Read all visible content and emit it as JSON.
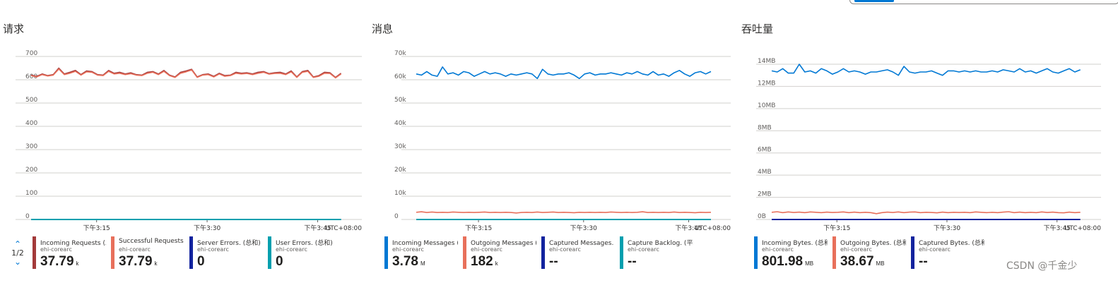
{
  "pager": {
    "label": "1/2",
    "up_icon": "chevron-up-icon",
    "down_icon": "chevron-down-icon"
  },
  "watermark": "CSDN @千金少",
  "colors": {
    "blue": "#0078d4",
    "salmon": "#e8705b",
    "navy": "#12239e",
    "teal": "#009fae",
    "darkred": "#6b0b2f",
    "grid": "#c8c6c4"
  },
  "chart_data": [
    {
      "type": "line",
      "title": "请求",
      "x_ticks": [
        "下午3:15",
        "下午3:30",
        "下午3:45"
      ],
      "x_ticks_minutes": [
        15,
        30,
        45
      ],
      "x_range_minutes": [
        4,
        51
      ],
      "timezone": "UTC+08:00",
      "y_ticks": [
        "0",
        "100",
        "200",
        "300",
        "400",
        "500",
        "600",
        "700"
      ],
      "y_tick_values": [
        0,
        100,
        200,
        300,
        400,
        500,
        600,
        700
      ],
      "ylim": [
        0,
        700
      ],
      "grid": true,
      "series": [
        {
          "name": "Incoming Requests (总和)",
          "resource": "ehi-corearc",
          "summary": "37.79",
          "unit": "k",
          "color": "#a33a3a",
          "values": [
            620,
            615,
            625,
            618,
            622,
            650,
            625,
            632,
            640,
            622,
            638,
            635,
            622,
            620,
            640,
            628,
            632,
            625,
            630,
            622,
            620,
            632,
            635,
            625,
            640,
            620,
            612,
            632,
            638,
            645,
            612,
            622,
            625,
            615,
            628,
            618,
            620,
            632,
            628,
            630,
            625,
            632,
            635,
            626,
            630,
            632,
            625,
            638,
            612,
            635,
            640,
            612,
            618,
            632,
            630,
            610,
            628
          ]
        },
        {
          "name": "Successful Requests ...",
          "resource": "ehi-corearc",
          "summary": "37.79",
          "unit": "k",
          "color": "#e8705b",
          "values": [
            618,
            612,
            622,
            616,
            620,
            646,
            622,
            628,
            636,
            620,
            634,
            632,
            620,
            618,
            636,
            625,
            628,
            622,
            626,
            620,
            618,
            628,
            632,
            622,
            636,
            618,
            610,
            628,
            634,
            642,
            610,
            620,
            622,
            612,
            625,
            615,
            618,
            628,
            625,
            627,
            622,
            628,
            632,
            624,
            627,
            628,
            622,
            634,
            610,
            632,
            636,
            610,
            615,
            628,
            627,
            608,
            625
          ]
        },
        {
          "name": "Server Errors. (总和)",
          "resource": "ehi-corearc",
          "summary": "0",
          "unit": "",
          "color": "#12239e",
          "flat": 0
        },
        {
          "name": "User Errors. (总和)",
          "resource": "ehi-corearc",
          "summary": "0",
          "unit": "",
          "color": "#009fae",
          "flat": 0
        }
      ]
    },
    {
      "type": "line",
      "title": "消息",
      "x_ticks": [
        "下午3:15",
        "下午3:30",
        "下午3:45"
      ],
      "x_ticks_minutes": [
        15,
        30,
        45
      ],
      "x_range_minutes": [
        4,
        51
      ],
      "timezone": "UTC+08:00",
      "y_ticks": [
        "0",
        "10k",
        "20k",
        "30k",
        "40k",
        "50k",
        "60k",
        "70k"
      ],
      "y_tick_values": [
        0,
        10000,
        20000,
        30000,
        40000,
        50000,
        60000,
        70000
      ],
      "ylim": [
        0,
        70000
      ],
      "grid": true,
      "series": [
        {
          "name": "Incoming Messages (总和)",
          "resource": "ehi-corearc",
          "summary": "3.78",
          "unit": "M",
          "color": "#0078d4",
          "values": [
            62500,
            62000,
            63500,
            62000,
            61500,
            65500,
            62500,
            63000,
            62000,
            63500,
            63000,
            61500,
            62500,
            63500,
            62500,
            63000,
            62500,
            61500,
            62500,
            62000,
            62500,
            63000,
            62500,
            60500,
            64500,
            62500,
            62000,
            62500,
            62500,
            63000,
            62000,
            60500,
            62500,
            63000,
            62000,
            62500,
            62500,
            63000,
            62500,
            62000,
            63000,
            62500,
            63500,
            62500,
            62000,
            63500,
            62000,
            62500,
            61500,
            63000,
            64000,
            62500,
            61500,
            63000,
            63500,
            62500,
            63500
          ]
        },
        {
          "name": "Outgoing Messages (总和)",
          "resource": "ehi-corearc",
          "summary": "182",
          "unit": "k",
          "color": "#e8705b",
          "values": [
            3100,
            3300,
            3000,
            3200,
            3000,
            3100,
            3000,
            3200,
            3100,
            3000,
            3100,
            3000,
            3100,
            3200,
            3000,
            3100,
            3000,
            3100,
            3000,
            2800,
            3000,
            3100,
            3000,
            3200,
            3000,
            3100,
            3200,
            3000,
            3100,
            3000,
            2900,
            3100,
            3000,
            3100,
            3000,
            3100,
            3000,
            3200,
            3100,
            3000,
            3100,
            3000,
            3100,
            3300,
            3000,
            3100,
            3000,
            3100,
            3000,
            3200,
            3000,
            3100,
            3000,
            2900,
            3100,
            3000,
            3100
          ]
        },
        {
          "name": "Captured Messages. (总和)",
          "resource": "ehi-corearc",
          "summary": "--",
          "unit": "",
          "color": "#12239e"
        },
        {
          "name": "Capture Backlog. (平均值)",
          "resource": "ehi-corearc",
          "summary": "--",
          "unit": "",
          "color": "#009fae",
          "flat": 0
        }
      ]
    },
    {
      "type": "line",
      "title": "吞吐量",
      "x_ticks": [
        "下午3:15",
        "下午3:30",
        "下午3:45"
      ],
      "x_ticks_minutes": [
        15,
        30,
        45
      ],
      "x_range_minutes": [
        4,
        51
      ],
      "timezone": "UTC+08:00",
      "y_ticks": [
        "0B",
        "2MB",
        "4MB",
        "6MB",
        "8MB",
        "10MB",
        "12MB",
        "14MB"
      ],
      "y_tick_values": [
        0,
        2,
        4,
        6,
        8,
        10,
        12,
        14
      ],
      "ylim": [
        0,
        14
      ],
      "grid": true,
      "series": [
        {
          "name": "Incoming Bytes. (总和)",
          "resource": "ehi-corearc",
          "summary": "801.98",
          "unit": "MB",
          "color": "#0078d4",
          "values": [
            13.4,
            13.3,
            13.6,
            13.2,
            13.2,
            14.0,
            13.3,
            13.4,
            13.2,
            13.6,
            13.4,
            13.1,
            13.3,
            13.6,
            13.3,
            13.4,
            13.3,
            13.1,
            13.3,
            13.3,
            13.4,
            13.5,
            13.3,
            13.0,
            13.8,
            13.3,
            13.2,
            13.3,
            13.3,
            13.4,
            13.2,
            13.0,
            13.4,
            13.4,
            13.3,
            13.4,
            13.3,
            13.4,
            13.3,
            13.3,
            13.4,
            13.3,
            13.5,
            13.4,
            13.3,
            13.6,
            13.3,
            13.4,
            13.2,
            13.4,
            13.6,
            13.3,
            13.2,
            13.4,
            13.6,
            13.3,
            13.5
          ]
        },
        {
          "name": "Outgoing Bytes. (总和)",
          "resource": "ehi-corearc",
          "summary": "38.67",
          "unit": "MB",
          "color": "#e8705b",
          "values": [
            0.65,
            0.7,
            0.62,
            0.68,
            0.63,
            0.66,
            0.62,
            0.68,
            0.65,
            0.62,
            0.66,
            0.63,
            0.65,
            0.68,
            0.62,
            0.66,
            0.62,
            0.65,
            0.62,
            0.52,
            0.62,
            0.66,
            0.63,
            0.68,
            0.62,
            0.66,
            0.68,
            0.62,
            0.65,
            0.63,
            0.6,
            0.66,
            0.62,
            0.65,
            0.63,
            0.65,
            0.62,
            0.68,
            0.65,
            0.62,
            0.65,
            0.62,
            0.66,
            0.7,
            0.62,
            0.66,
            0.62,
            0.65,
            0.62,
            0.68,
            0.63,
            0.66,
            0.62,
            0.6,
            0.66,
            0.62,
            0.65
          ]
        },
        {
          "name": "Captured Bytes. (总和)",
          "resource": "ehi-corearc",
          "summary": "--",
          "unit": "",
          "color": "#12239e",
          "flat": 0
        }
      ]
    }
  ]
}
